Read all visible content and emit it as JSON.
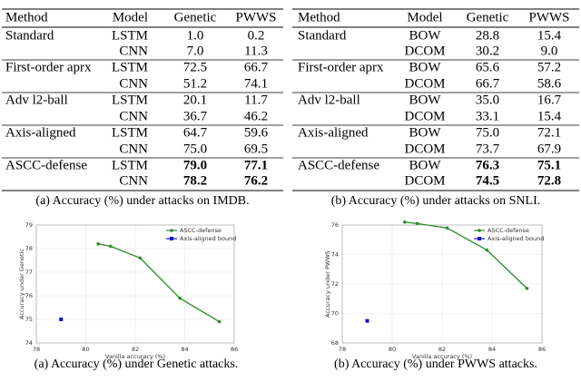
{
  "tables": [
    {
      "headers": [
        "Method",
        "Model",
        "Genetic",
        "PWWS"
      ],
      "rows": [
        [
          "Standard",
          "LSTM",
          "1.0",
          "0.2"
        ],
        [
          null,
          "CNN",
          "7.0",
          "11.3"
        ],
        [
          "First-order aprx",
          "LSTM",
          "72.5",
          "66.7"
        ],
        [
          null,
          "CNN",
          "51.2",
          "74.1"
        ],
        [
          "Adv l2-ball",
          "LSTM",
          "20.1",
          "11.7"
        ],
        [
          null,
          "CNN",
          "36.7",
          "46.2"
        ],
        [
          "Axis-aligned",
          "LSTM",
          "64.7",
          "59.6"
        ],
        [
          null,
          "CNN",
          "75.0",
          "69.5"
        ],
        [
          "ASCC-defense",
          "LSTM",
          "79.0",
          "77.1"
        ],
        [
          null,
          "CNN",
          "78.2",
          "76.2"
        ]
      ],
      "caption": "(a) Accuracy (%) under attacks on IMDB."
    },
    {
      "headers": [
        "Method",
        "Model",
        "Genetic",
        "PWWS"
      ],
      "rows": [
        [
          "Standard",
          "BOW",
          "28.8",
          "15.4"
        ],
        [
          null,
          "DCOM",
          "30.2",
          "9.0"
        ],
        [
          "First-order aprx",
          "BOW",
          "65.6",
          "57.2"
        ],
        [
          null,
          "DCOM",
          "66.7",
          "58.6"
        ],
        [
          "Adv l2-ball",
          "BOW",
          "35.0",
          "16.7"
        ],
        [
          null,
          "DCOM",
          "33.1",
          "15.4"
        ],
        [
          "Axis-aligned",
          "BOW",
          "75.0",
          "72.1"
        ],
        [
          null,
          "DCOM",
          "73.7",
          "67.9"
        ],
        [
          "ASCC-defense",
          "BOW",
          "76.3",
          "75.1"
        ],
        [
          null,
          "DCOM",
          "74.5",
          "72.8"
        ]
      ],
      "caption": "(b) Accuracy (%) under attacks on SNLI."
    }
  ],
  "chart_data": [
    {
      "type": "line",
      "x_label": "Vanilla accuracy (%)",
      "y_label": "Accuracy under Genetic",
      "caption": "(a) Accuracy (%) under Genetic attacks.",
      "xlim": [
        78,
        86
      ],
      "xticks": [
        78,
        80,
        82,
        84,
        86
      ],
      "ylim": [
        74,
        79
      ],
      "yticks": [
        74,
        75,
        76,
        77,
        78,
        79
      ],
      "grid": true,
      "legend": "upper right",
      "series": [
        {
          "name": "ASCC-defense",
          "color": "#2b8a2b",
          "marker": "circle",
          "x": [
            80.5,
            81.0,
            82.2,
            83.8,
            85.4
          ],
          "values": [
            78.2,
            78.1,
            77.6,
            75.9,
            74.9
          ]
        },
        {
          "name": "Axis-aligned bound",
          "color": "#1010d0",
          "marker": "square",
          "x": [
            79.0
          ],
          "values": [
            75.0
          ]
        }
      ]
    },
    {
      "type": "line",
      "x_label": "Vanilla accuracy (%)",
      "y_label": "Accuracy under PWWS",
      "caption": "(b) Accuracy (%) under PWWS attacks.",
      "xlim": [
        78,
        86
      ],
      "xticks": [
        78,
        80,
        82,
        84,
        86
      ],
      "ylim": [
        68,
        76
      ],
      "yticks": [
        68,
        70,
        72,
        74,
        76
      ],
      "grid": true,
      "legend": "upper right",
      "series": [
        {
          "name": "ASCC-defense",
          "color": "#2b8a2b",
          "marker": "circle",
          "x": [
            80.5,
            81.0,
            82.2,
            83.8,
            85.4
          ],
          "values": [
            76.2,
            76.1,
            75.8,
            74.3,
            71.7
          ]
        },
        {
          "name": "Axis-aligned bound",
          "color": "#1010d0",
          "marker": "square",
          "x": [
            79.0
          ],
          "values": [
            69.5
          ]
        }
      ]
    }
  ]
}
